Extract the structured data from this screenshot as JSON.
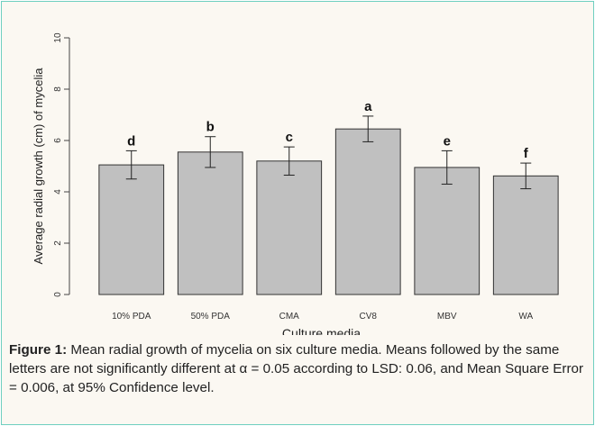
{
  "figure": {
    "caption_label": "Figure 1:",
    "caption_text": " Mean radial growth of mycelia on six culture media. Means followed by the same letters are not significantly different at α = 0.05 according to LSD: 0.06, and Mean Square Error = 0.006, at 95% Confidence level."
  },
  "chart_data": {
    "type": "bar",
    "title": "",
    "xlabel": "Culture media",
    "ylabel": "Average radial growth (cm) of mycelia",
    "ylim": [
      0,
      10
    ],
    "yticks": [
      "0",
      "2",
      "4",
      "6",
      "8",
      "10"
    ],
    "categories": [
      "10% PDA",
      "50% PDA",
      "CMA",
      "CV8",
      "MBV",
      "WA"
    ],
    "values": [
      5.05,
      5.55,
      5.2,
      6.45,
      4.95,
      4.62
    ],
    "error": [
      0.55,
      0.6,
      0.55,
      0.5,
      0.65,
      0.5
    ],
    "letters": [
      "d",
      "b",
      "c",
      "a",
      "e",
      "f"
    ],
    "colors": {
      "bar_fill": "#c0c0c0",
      "bar_stroke": "#333333",
      "axis": "#444444"
    },
    "grid": false,
    "legend": "none"
  }
}
